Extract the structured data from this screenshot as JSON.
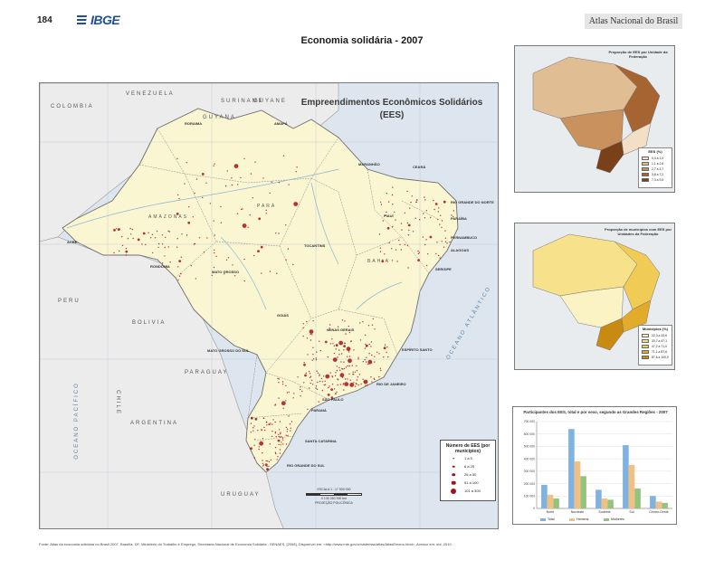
{
  "page": {
    "number": "184",
    "logo_text": "IBGE",
    "atlas_title": "Atlas Nacional do Brasil",
    "title": "Economia solidária - 2007",
    "source": "Fonte: Atlas da economia solidária no Brasil 2007. Brasília, DF: Ministério do Trabalho e Emprego, Secretaria Nacional de Economia Solidária - SENAES, [2008]. Disponível em: <http://www.mte.gov.br/sistemas/atlas/AtlasEmenu.html>. Acesso em: out. 2010."
  },
  "main_map": {
    "title": "Empreendimentos Econômicos Solidários (EES)",
    "colors": {
      "sea": "#dde6ef",
      "neighbor": "#ececec",
      "brazil": "#fbf6d2",
      "dot": "#a3121c"
    },
    "country_labels": [
      "VENEZUELA",
      "COLOMBIA",
      "GUYANA",
      "SURINAME",
      "GUYANE",
      "PERU",
      "BOLIVIA",
      "PARAGUAY",
      "ARGENTINA",
      "URUGUAY",
      "CHILE"
    ],
    "ocean_labels": [
      "OCEANO ATLÂNTICO",
      "OCEANO PACÍFICO"
    ],
    "state_labels": [
      "RORAIMA",
      "AMAPÁ",
      "AMAZONAS",
      "PARÁ",
      "MARANHÃO",
      "CEARÁ",
      "RIO GRANDE DO NORTE",
      "PARAÍBA",
      "PERNAMBUCO",
      "ALAGOAS",
      "SERGIPE",
      "BAHIA",
      "PIAUÍ",
      "TOCANTINS",
      "ACRE",
      "RONDÔNIA",
      "MATO GROSSO",
      "GOIÁS",
      "MINAS GERAIS",
      "ESPÍRITO SANTO",
      "MATO GROSSO DO SUL",
      "RIO DE JANEIRO",
      "SÃO PAULO",
      "PARANÁ",
      "SANTA CATARINA",
      "RIO GRANDE DO SUL"
    ],
    "legend": {
      "title": "Número de EES (por municípios)",
      "classes": [
        "1 a 5",
        "6 a 25",
        "26 a 50",
        "51 a 100",
        "101 a 300"
      ]
    },
    "scale": {
      "text": "ESCALA 1 : 17 500 000",
      "units": "0  130  260  390 km",
      "projection": "PROJEÇÃO POLICÔNICA"
    }
  },
  "inset1": {
    "title": "Proporção de EES por Unidade da Federação",
    "legend_title": "EES (%)",
    "classes": [
      "0,4 a 1,0",
      "1,1 a 2,6",
      "2,7 a 3,7",
      "3,8 a 7,2",
      "7,3 a 9,5"
    ],
    "colors": [
      "#f2dfc6",
      "#e0bd93",
      "#c9915d",
      "#a66432",
      "#7a4019"
    ]
  },
  "inset2": {
    "title": "Proporção de municípios com EES por Unidades da Federação",
    "legend_title": "Municípios (%)",
    "classes": [
      "22,3 a 33,6",
      "33,7 a 47,1",
      "47,2 a 71,0",
      "71,1 a 87,6",
      "87,6 a 100,0"
    ],
    "colors": [
      "#fbf3c4",
      "#f7e18a",
      "#f0cb55",
      "#e3ab2a",
      "#c98a12"
    ]
  },
  "chart_data": {
    "type": "bar",
    "title": "Participantes dos EES, total e por sexo, segundo as Grandes Regiões - 2007",
    "categories": [
      "Norte",
      "Nordeste",
      "Sudeste",
      "Sul",
      "Centro-Oeste"
    ],
    "series": [
      {
        "name": "Total",
        "color": "#7fb2dd",
        "values": [
          190000,
          640000,
          150000,
          510000,
          100000
        ]
      },
      {
        "name": "Homens",
        "color": "#f3c083",
        "values": [
          110000,
          380000,
          80000,
          350000,
          55000
        ]
      },
      {
        "name": "Mulheres",
        "color": "#93c47d",
        "values": [
          80000,
          260000,
          70000,
          160000,
          45000
        ]
      }
    ],
    "ylim": [
      0,
      700000
    ],
    "yticks": [
      "0",
      "100 000",
      "200 000",
      "300 000",
      "400 000",
      "500 000",
      "600 000",
      "700 000"
    ],
    "grid": true,
    "legend_position": "bottom"
  }
}
